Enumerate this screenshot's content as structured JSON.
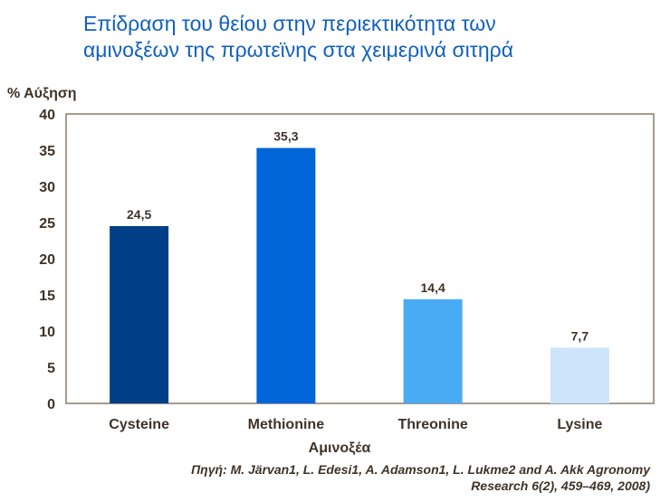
{
  "title_line1": "Επίδραση του θείου στην περιεκτικότητα των",
  "title_line2": "αμινοξέων της πρωτεϊνης στα χειμερινά σιτηρά",
  "source_line1": "Πηγή: M. Järvan1, L. Edesi1, A. Adamson1, L. Lukme2 and A. Akk Agronomy",
  "source_line2": "Research 6(2), 459–469, 2008)",
  "chart_data": {
    "type": "bar",
    "title": "Επίδραση του θείου στην περιεκτικότητα των αμινοξέων της πρωτεϊνης στα χειμερινά σιτηρά",
    "xlabel": "Αμινοξέα",
    "ylabel": "% Αύξηση",
    "categories": [
      "Cysteine",
      "Methionine",
      "Threonine",
      "Lysine"
    ],
    "values": [
      24.5,
      35.3,
      14.4,
      7.7
    ],
    "value_labels": [
      "24,5",
      "35,3",
      "14,4",
      "7,7"
    ],
    "colors": [
      "#003f87",
      "#0066d9",
      "#4aabf5",
      "#cce5fa"
    ],
    "ylim": [
      0,
      40
    ],
    "yticks": [
      0,
      5,
      10,
      15,
      20,
      25,
      30,
      35,
      40
    ],
    "grid": false,
    "legend": "none"
  }
}
